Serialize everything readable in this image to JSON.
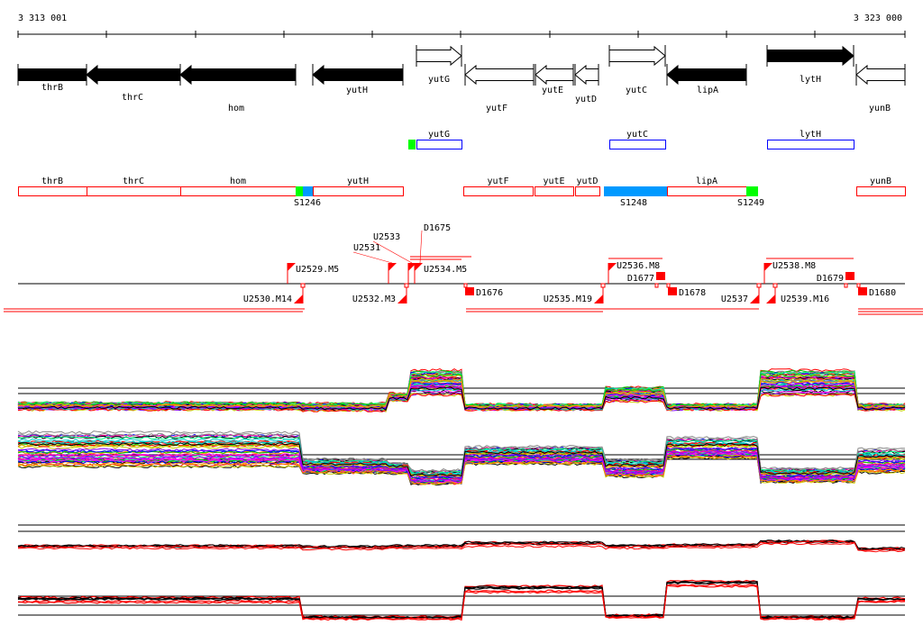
{
  "ruler": {
    "start_label": "3 313 001",
    "end_label": "3 323 000"
  },
  "genes": [
    {
      "name": "thrB",
      "strand": "-",
      "fill": "black"
    },
    {
      "name": "thrC",
      "strand": "-",
      "fill": "black"
    },
    {
      "name": "hom",
      "strand": "-",
      "fill": "black"
    },
    {
      "name": "yutH",
      "strand": "-",
      "fill": "black"
    },
    {
      "name": "yutG",
      "strand": "+",
      "fill": "white"
    },
    {
      "name": "yutF",
      "strand": "-",
      "fill": "white"
    },
    {
      "name": "yutE",
      "strand": "-",
      "fill": "white"
    },
    {
      "name": "yutD",
      "strand": "-",
      "fill": "white"
    },
    {
      "name": "yutC",
      "strand": "+",
      "fill": "white"
    },
    {
      "name": "lipA",
      "strand": "-",
      "fill": "black"
    },
    {
      "name": "lytH",
      "strand": "+",
      "fill": "black"
    },
    {
      "name": "yunB",
      "strand": "-",
      "fill": "white"
    }
  ],
  "forward_units": [
    "yutG",
    "yutC",
    "lytH"
  ],
  "reverse_units": [
    "thrB",
    "thrC",
    "hom",
    "yutH",
    "yutF",
    "yutE",
    "yutD",
    "lipA",
    "yunB"
  ],
  "sites": [
    "S1246",
    "S1248",
    "S1249"
  ],
  "upshifts": [
    "U2529.M5",
    "U2531",
    "U2533",
    "U2534.M5",
    "U2536.M8",
    "U2538.M8"
  ],
  "downshifts_labels": [
    "U2530.M14",
    "U2532.M3",
    "U2535.M19",
    "U2537",
    "U2539.M16"
  ],
  "terminators": [
    "D1675",
    "D1676",
    "D1677",
    "D1678",
    "D1679",
    "D1680"
  ],
  "colors": {
    "red": "#ff0000",
    "blue": "#0000ff",
    "green": "#00ff00",
    "cyan": "#0099ff"
  }
}
